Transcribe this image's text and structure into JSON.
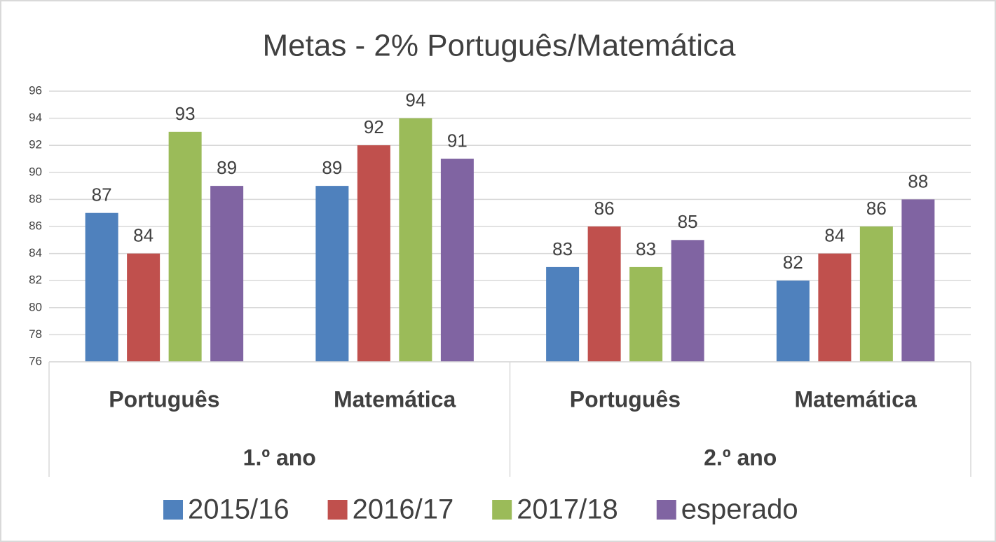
{
  "chart_data": {
    "type": "bar",
    "title": "Metas - 2% Português/Matemática",
    "groups": [
      {
        "name": "1.º ano",
        "categories": [
          "Português",
          "Matemática"
        ]
      },
      {
        "name": "2.º ano",
        "categories": [
          "Português",
          "Matemática"
        ]
      }
    ],
    "series": [
      {
        "name": "2015/16",
        "color": "#4f81bd",
        "values": [
          87,
          89,
          83,
          82
        ]
      },
      {
        "name": "2016/17",
        "color": "#c0504d",
        "values": [
          84,
          92,
          86,
          84
        ]
      },
      {
        "name": "2017/18",
        "color": "#9bbb59",
        "values": [
          93,
          94,
          83,
          86
        ]
      },
      {
        "name": "esperado",
        "color": "#8064a2",
        "values": [
          89,
          91,
          85,
          88
        ]
      }
    ],
    "ylim": [
      76,
      96
    ],
    "yticks": [
      76,
      78,
      80,
      82,
      84,
      86,
      88,
      90,
      92,
      94,
      96
    ],
    "grid": true,
    "legend": "bottom"
  }
}
